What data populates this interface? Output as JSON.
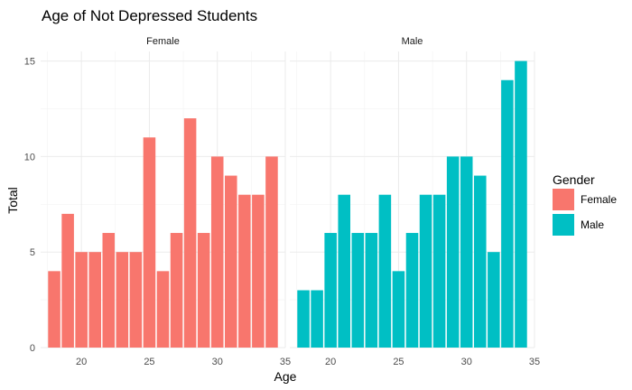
{
  "chart_data": {
    "type": "bar",
    "title": "Age of Not Depressed Students",
    "xlabel": "Age",
    "ylabel": "Total",
    "xlim": [
      17,
      35
    ],
    "ylim": [
      0,
      15.5
    ],
    "x_ticks": [
      20,
      25,
      30,
      35
    ],
    "y_ticks": [
      0,
      5,
      10,
      15
    ],
    "grid": true,
    "legend": {
      "title": "Gender",
      "placement": "right"
    },
    "facets": [
      "Female",
      "Male"
    ],
    "x": [
      18,
      19,
      20,
      21,
      22,
      23,
      24,
      25,
      26,
      27,
      28,
      29,
      30,
      31,
      32,
      33,
      34
    ],
    "series": [
      {
        "name": "Female",
        "color": "#F8766D",
        "values": [
          4,
          7,
          5,
          5,
          6,
          5,
          5,
          11,
          4,
          6,
          12,
          6,
          10,
          9,
          8,
          8,
          10
        ]
      },
      {
        "name": "Male",
        "color": "#00BFC4",
        "values": [
          3,
          3,
          6,
          8,
          6,
          6,
          8,
          4,
          6,
          8,
          8,
          10,
          10,
          9,
          5,
          14,
          15
        ]
      }
    ]
  }
}
